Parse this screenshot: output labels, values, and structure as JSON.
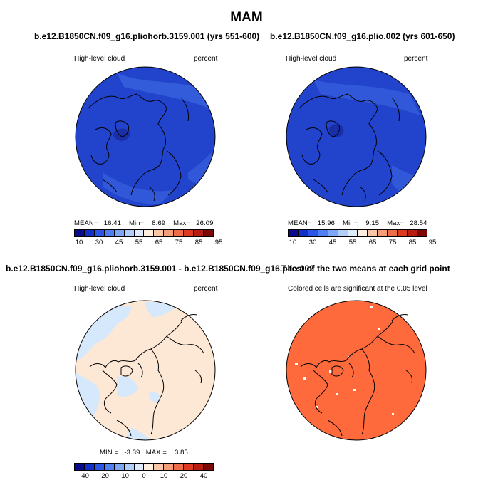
{
  "title": "MAM",
  "panels": [
    {
      "id": "top-left",
      "title": "b.e12.B1850CN.f09_g16.pliohorb.3159.001 (yrs 551-600)",
      "left_label": "High-level cloud",
      "right_label": "percent",
      "stats": {
        "mean_label": "MEAN=",
        "mean": "16.41",
        "min_label": "Min=",
        "min": "8.69",
        "max_label": "Max=",
        "max": "26.09"
      },
      "fill_color": "#2244cc"
    },
    {
      "id": "top-right",
      "title": "b.e12.B1850CN.f09_g16.plio.002 (yrs 601-650)",
      "left_label": "High-level cloud",
      "right_label": "percent",
      "stats": {
        "mean_label": "MEAN=",
        "mean": "15.96",
        "min_label": "Min=",
        "min": "9.15",
        "max_label": "Max=",
        "max": "28.54"
      },
      "fill_color": "#2244cc"
    },
    {
      "id": "bottom-left",
      "title": "b.e12.B1850CN.f09_g16.pliohorb.3159.001 - b.e12.B1850CN.f09_g16.plio.002",
      "left_label": "High-level cloud",
      "right_label": "percent",
      "stats": {
        "min_label": "MIN =",
        "min": "-3.39",
        "max_label": "MAX =",
        "max": "3.85"
      },
      "fill_color": "#fde8d6",
      "neg_color": "#d6e8fb"
    },
    {
      "id": "bottom-right",
      "title": "T-test of the two means at each grid point",
      "center_label": "Colored cells are significant at the 0.05 level",
      "fill_color": "#ff6a3d"
    }
  ],
  "colorbar_abs": {
    "colors": [
      "#0a0a8c",
      "#1230c8",
      "#2a55e6",
      "#4f7ff0",
      "#7ea6f6",
      "#b1cdfa",
      "#dde9fc",
      "#fdeede",
      "#f9c6a6",
      "#f49d77",
      "#ee6c48",
      "#de3a22",
      "#b81d12",
      "#7d0707"
    ],
    "ticks": [
      "10",
      "30",
      "45",
      "55",
      "65",
      "75",
      "85",
      "95"
    ]
  },
  "colorbar_diff": {
    "colors": [
      "#0a0a8c",
      "#1230c8",
      "#2a55e6",
      "#4f7ff0",
      "#7ea6f6",
      "#b1cdfa",
      "#dde9fc",
      "#fdeede",
      "#f9c6a6",
      "#f49d77",
      "#ee6c48",
      "#de3a22",
      "#b81d12",
      "#7d0707"
    ],
    "ticks": [
      "-40",
      "-20",
      "-10",
      "0",
      "10",
      "20",
      "40"
    ]
  }
}
